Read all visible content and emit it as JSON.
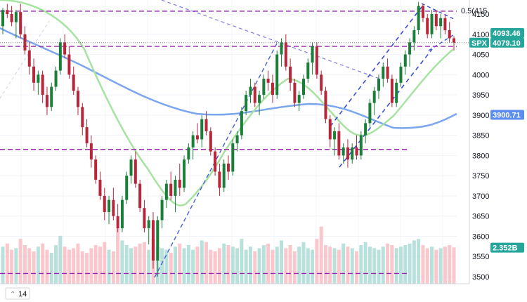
{
  "chart_data": {
    "type": "candlestick",
    "symbol": "SPX",
    "y_axis": {
      "ticks": [
        3500,
        3550,
        3600,
        3650,
        3700,
        3750,
        3800,
        3850,
        3900,
        3950,
        4000,
        4050,
        4100,
        4150
      ],
      "range": [
        3490,
        4180
      ]
    },
    "price_tags": [
      {
        "label": "4093.46",
        "value": 4093.46,
        "color": "#26a69a",
        "text_color": "#ffffff"
      },
      {
        "label": "4079.10",
        "value": 4079.1,
        "color": "#26a69a",
        "text_color": "#ffffff"
      },
      {
        "label": "SPX",
        "value": 4079.1,
        "color": "#26a69a",
        "text_color": "#ffffff"
      },
      {
        "label": "3900.71",
        "value": 3900.71,
        "color": "#5b8def",
        "text_color": "#ffffff"
      },
      {
        "label": "2.352B",
        "value": 3572,
        "color": "#26a69a",
        "text_color": "#ffffff"
      }
    ],
    "annotations": [
      {
        "label": "0.5(415",
        "value": 4157
      }
    ],
    "level_lines": [
      {
        "value": 4157,
        "color": "#9c27b0"
      },
      {
        "value": 4070,
        "color": "#9c27b0"
      },
      {
        "value": 3815,
        "color": "#9c27b0"
      },
      {
        "value": 3508,
        "color": "#9c27b0"
      }
    ],
    "interval_badge": "14",
    "candles": [
      [
        4120,
        4165,
        4100,
        4160
      ],
      [
        4160,
        4175,
        4140,
        4150
      ],
      [
        4150,
        4170,
        4120,
        4130
      ],
      [
        4130,
        4160,
        4090,
        4155
      ],
      [
        4155,
        4175,
        4090,
        4100
      ],
      [
        4100,
        4120,
        4050,
        4060
      ],
      [
        4060,
        4080,
        4000,
        4020
      ],
      [
        4020,
        4040,
        3960,
        3980
      ],
      [
        3980,
        4010,
        3950,
        4000
      ],
      [
        4000,
        4010,
        3930,
        3950
      ],
      [
        3950,
        3970,
        3900,
        3920
      ],
      [
        3920,
        3980,
        3910,
        3970
      ],
      [
        3970,
        4020,
        3960,
        4010
      ],
      [
        4010,
        4090,
        4000,
        4080
      ],
      [
        4080,
        4100,
        4040,
        4050
      ],
      [
        4050,
        4070,
        3990,
        4000
      ],
      [
        4000,
        4020,
        3950,
        3960
      ],
      [
        3960,
        3970,
        3900,
        3920
      ],
      [
        3920,
        3930,
        3850,
        3870
      ],
      [
        3870,
        3890,
        3820,
        3830
      ],
      [
        3830,
        3850,
        3770,
        3790
      ],
      [
        3790,
        3800,
        3730,
        3740
      ],
      [
        3740,
        3760,
        3690,
        3700
      ],
      [
        3700,
        3720,
        3640,
        3660
      ],
      [
        3660,
        3700,
        3630,
        3690
      ],
      [
        3690,
        3720,
        3640,
        3650
      ],
      [
        3650,
        3680,
        3610,
        3620
      ],
      [
        3620,
        3700,
        3610,
        3690
      ],
      [
        3690,
        3760,
        3680,
        3750
      ],
      [
        3750,
        3800,
        3730,
        3790
      ],
      [
        3790,
        3810,
        3720,
        3730
      ],
      [
        3730,
        3740,
        3660,
        3670
      ],
      [
        3670,
        3690,
        3610,
        3620
      ],
      [
        3620,
        3650,
        3580,
        3640
      ],
      [
        3640,
        3660,
        3520,
        3540
      ],
      [
        3540,
        3650,
        3500,
        3640
      ],
      [
        3640,
        3700,
        3620,
        3690
      ],
      [
        3690,
        3740,
        3670,
        3730
      ],
      [
        3730,
        3760,
        3690,
        3700
      ],
      [
        3700,
        3750,
        3660,
        3740
      ],
      [
        3740,
        3780,
        3700,
        3720
      ],
      [
        3720,
        3800,
        3710,
        3790
      ],
      [
        3790,
        3830,
        3780,
        3820
      ],
      [
        3820,
        3860,
        3790,
        3850
      ],
      [
        3850,
        3880,
        3830,
        3840
      ],
      [
        3840,
        3900,
        3820,
        3890
      ],
      [
        3890,
        3910,
        3850,
        3860
      ],
      [
        3860,
        3870,
        3800,
        3810
      ],
      [
        3810,
        3820,
        3750,
        3760
      ],
      [
        3760,
        3780,
        3700,
        3720
      ],
      [
        3720,
        3790,
        3710,
        3780
      ],
      [
        3780,
        3800,
        3740,
        3760
      ],
      [
        3760,
        3840,
        3750,
        3830
      ],
      [
        3830,
        3860,
        3810,
        3850
      ],
      [
        3850,
        3920,
        3840,
        3910
      ],
      [
        3910,
        3960,
        3900,
        3950
      ],
      [
        3950,
        3990,
        3930,
        3970
      ],
      [
        3970,
        3980,
        3920,
        3930
      ],
      [
        3930,
        3960,
        3900,
        3950
      ],
      [
        3950,
        4000,
        3940,
        3990
      ],
      [
        3990,
        4010,
        3960,
        3980
      ],
      [
        3980,
        4000,
        3930,
        3950
      ],
      [
        3950,
        4060,
        3940,
        4050
      ],
      [
        4050,
        4090,
        4020,
        4080
      ],
      [
        4080,
        4100,
        4010,
        4020
      ],
      [
        4020,
        4040,
        3960,
        3980
      ],
      [
        3980,
        3990,
        3920,
        3930
      ],
      [
        3930,
        3960,
        3910,
        3950
      ],
      [
        3950,
        4000,
        3940,
        3990
      ],
      [
        3990,
        4040,
        3980,
        4030
      ],
      [
        4030,
        4080,
        4000,
        4070
      ],
      [
        4070,
        4080,
        3990,
        4000
      ],
      [
        4000,
        4010,
        3950,
        3960
      ],
      [
        3960,
        3970,
        3880,
        3890
      ],
      [
        3890,
        3900,
        3820,
        3840
      ],
      [
        3840,
        3870,
        3800,
        3860
      ],
      [
        3860,
        3880,
        3790,
        3800
      ],
      [
        3800,
        3830,
        3780,
        3820
      ],
      [
        3820,
        3840,
        3770,
        3790
      ],
      [
        3790,
        3830,
        3780,
        3820
      ],
      [
        3820,
        3850,
        3790,
        3800
      ],
      [
        3800,
        3860,
        3790,
        3850
      ],
      [
        3850,
        3890,
        3830,
        3880
      ],
      [
        3880,
        3940,
        3870,
        3930
      ],
      [
        3930,
        3970,
        3900,
        3960
      ],
      [
        3960,
        4000,
        3940,
        3990
      ],
      [
        3990,
        4030,
        3970,
        4020
      ],
      [
        4020,
        4040,
        3980,
        3990
      ],
      [
        3990,
        4000,
        3920,
        3930
      ],
      [
        3930,
        3990,
        3920,
        3980
      ],
      [
        3980,
        4030,
        3970,
        4020
      ],
      [
        4020,
        4060,
        4000,
        4050
      ],
      [
        4050,
        4090,
        4020,
        4080
      ],
      [
        4080,
        4120,
        4060,
        4110
      ],
      [
        4110,
        4180,
        4100,
        4170
      ],
      [
        4170,
        4175,
        4130,
        4140
      ],
      [
        4140,
        4150,
        4090,
        4100
      ],
      [
        4100,
        4160,
        4090,
        4150
      ],
      [
        4150,
        4160,
        4110,
        4120
      ],
      [
        4120,
        4150,
        4090,
        4140
      ],
      [
        4140,
        4150,
        4100,
        4110
      ],
      [
        4110,
        4130,
        4080,
        4090
      ],
      [
        4090,
        4095,
        4060,
        4079
      ]
    ],
    "volumes": [
      2.4,
      2.6,
      2.2,
      2.3,
      2.9,
      2.5,
      2.3,
      2.1,
      2.4,
      2.6,
      2.2,
      2.0,
      2.5,
      3.1,
      2.4,
      2.2,
      2.3,
      2.6,
      2.1,
      2.0,
      2.3,
      2.5,
      2.4,
      2.7,
      2.2,
      2.1,
      3.6,
      2.8,
      2.5,
      2.3,
      2.4,
      2.6,
      2.7,
      2.2,
      2.9,
      2.4,
      2.3,
      2.2,
      2.0,
      2.4,
      2.6,
      2.3,
      2.5,
      2.2,
      2.4,
      2.8,
      2.7,
      2.2,
      2.1,
      2.3,
      2.6,
      2.5,
      2.4,
      2.3,
      2.9,
      2.2,
      2.4,
      2.1,
      2.3,
      2.5,
      2.6,
      2.2,
      2.4,
      2.8,
      2.3,
      2.5,
      2.1,
      2.4,
      2.7,
      2.3,
      2.2,
      2.9,
      3.7,
      2.5,
      2.4,
      2.3,
      2.2,
      2.6,
      2.4,
      2.3,
      2.1,
      2.5,
      2.7,
      2.4,
      2.3,
      2.2,
      2.4,
      2.6,
      2.5,
      2.3,
      2.4,
      2.5,
      2.6,
      2.8,
      2.9,
      2.5,
      2.3,
      2.4,
      2.2,
      2.3,
      2.4,
      2.5,
      2.35
    ]
  }
}
